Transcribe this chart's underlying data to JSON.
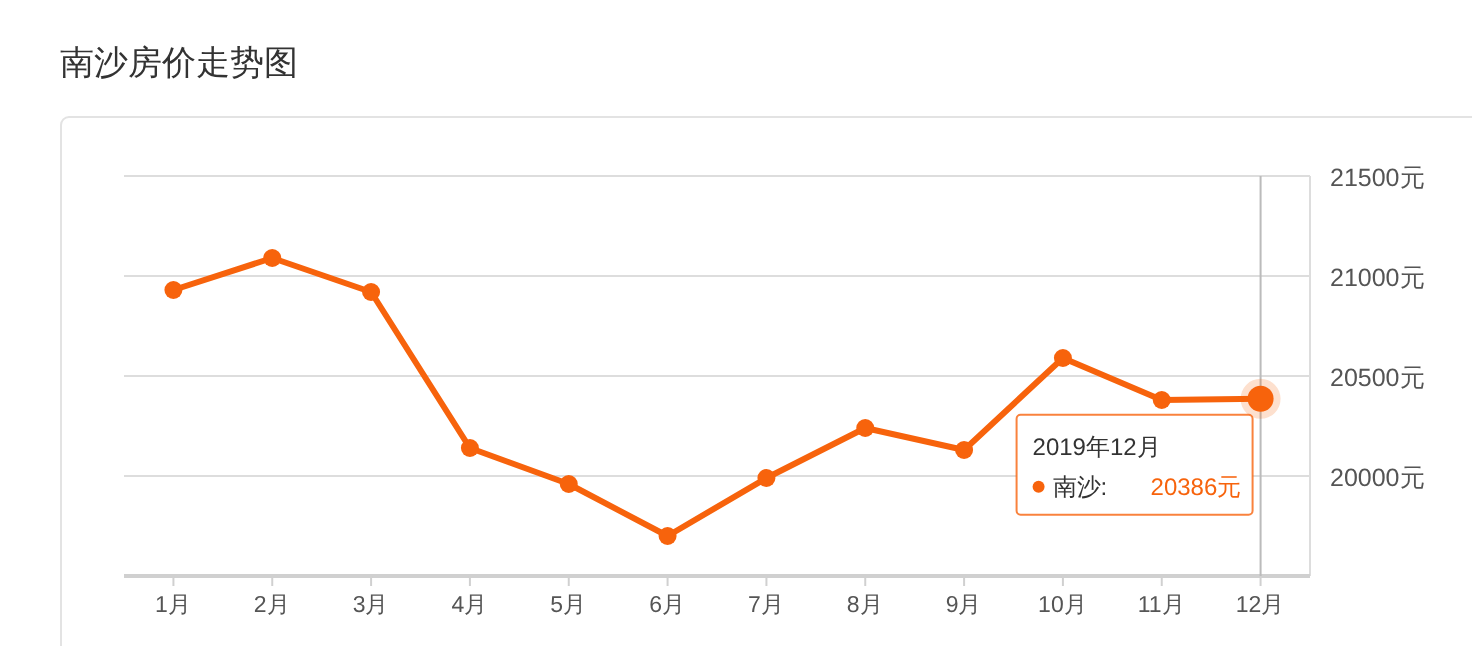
{
  "chart_data": {
    "type": "line",
    "title": "南沙房价走势图",
    "categories": [
      "1月",
      "2月",
      "3月",
      "4月",
      "5月",
      "6月",
      "7月",
      "8月",
      "9月",
      "10月",
      "11月",
      "12月"
    ],
    "series": [
      {
        "name": "南沙:",
        "color": "#f7630c",
        "values": [
          20930,
          21090,
          20920,
          20140,
          19960,
          19700,
          19990,
          20240,
          20130,
          20590,
          20380,
          20386
        ],
        "value_labels": [
          null,
          null,
          null,
          null,
          null,
          null,
          null,
          null,
          null,
          null,
          null,
          "20386元"
        ]
      }
    ],
    "ylim": [
      19500,
      21500
    ],
    "yticks": [
      {
        "value": 19500,
        "label": null
      },
      {
        "value": 20000,
        "label": "20000元"
      },
      {
        "value": 20500,
        "label": "20500元"
      },
      {
        "value": 21000,
        "label": "21000元"
      },
      {
        "value": 21500,
        "label": "21500元"
      }
    ],
    "grid": "y",
    "marker": "circle",
    "line_style": "solid",
    "ref_lines": [
      {
        "axis": "x",
        "value": "12月",
        "color": "#bbbbbb"
      }
    ],
    "annotations": [
      "2019年12月"
    ]
  }
}
